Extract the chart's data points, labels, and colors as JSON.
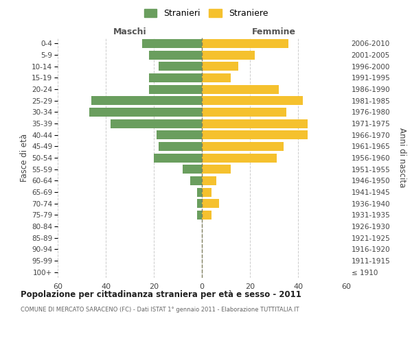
{
  "age_groups": [
    "100+",
    "95-99",
    "90-94",
    "85-89",
    "80-84",
    "75-79",
    "70-74",
    "65-69",
    "60-64",
    "55-59",
    "50-54",
    "45-49",
    "40-44",
    "35-39",
    "30-34",
    "25-29",
    "20-24",
    "15-19",
    "10-14",
    "5-9",
    "0-4"
  ],
  "birth_years": [
    "≤ 1910",
    "1911-1915",
    "1916-1920",
    "1921-1925",
    "1926-1930",
    "1931-1935",
    "1936-1940",
    "1941-1945",
    "1946-1950",
    "1951-1955",
    "1956-1960",
    "1961-1965",
    "1966-1970",
    "1971-1975",
    "1976-1980",
    "1981-1985",
    "1986-1990",
    "1991-1995",
    "1996-2000",
    "2001-2005",
    "2006-2010"
  ],
  "males": [
    0,
    0,
    0,
    0,
    0,
    2,
    2,
    2,
    5,
    8,
    20,
    18,
    19,
    38,
    47,
    46,
    22,
    22,
    18,
    22,
    25
  ],
  "females": [
    0,
    0,
    0,
    0,
    0,
    4,
    7,
    4,
    6,
    12,
    31,
    34,
    44,
    44,
    35,
    42,
    32,
    12,
    15,
    22,
    36
  ],
  "male_color": "#6a9e5e",
  "female_color": "#f5c12e",
  "grid_color": "#cccccc",
  "center_line_color": "#808060",
  "title": "Popolazione per cittadinanza straniera per età e sesso - 2011",
  "subtitle": "COMUNE DI MERCATO SARACENO (FC) - Dati ISTAT 1° gennaio 2011 - Elaborazione TUTTITALIA.IT",
  "ylabel_left": "Fasce di età",
  "ylabel_right": "Anni di nascita",
  "header_left": "Maschi",
  "header_right": "Femmine",
  "legend_male": "Stranieri",
  "legend_female": "Straniere",
  "xlim": 60,
  "background_color": "#ffffff"
}
